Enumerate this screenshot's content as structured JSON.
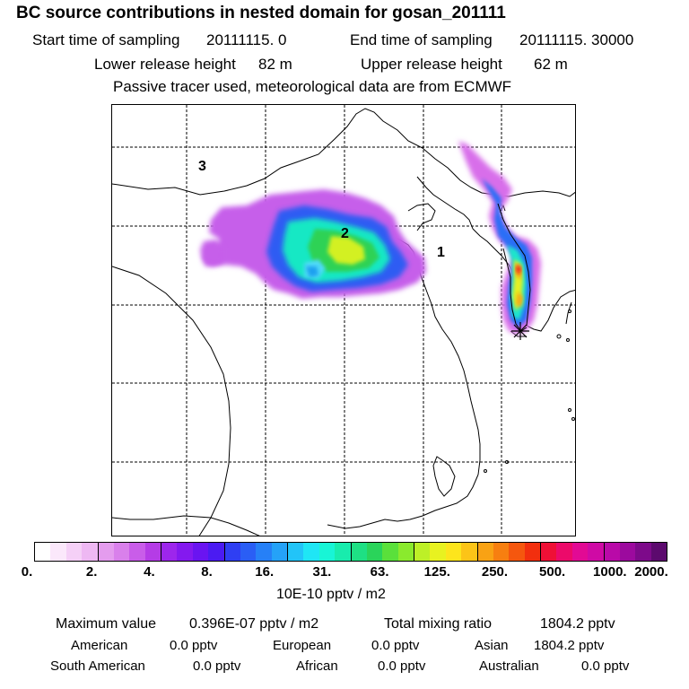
{
  "header": {
    "title": "BC  source contributions in nested domain for gosan_201111",
    "start_label": "Start time of sampling",
    "start_value": "20111115.     0",
    "end_label": "End time of sampling",
    "end_value": "20111115. 30000",
    "lower_label": "Lower release height",
    "lower_value": "82 m",
    "upper_label": "Upper release height",
    "upper_value": "62 m",
    "tracer_note": "Passive tracer used, meteorological data are from ECMWF"
  },
  "map": {
    "region_labels": [
      "1",
      "2",
      "3"
    ],
    "receptor_marker": "asterisk-marker"
  },
  "colorbar": {
    "unit_label": "10E-10 pptv / m2",
    "tick_labels": [
      "0.",
      "2.",
      "4.",
      "8.",
      "16.",
      "31.",
      "63.",
      "125.",
      "250.",
      "500.",
      "1000.",
      "2000."
    ],
    "colors": [
      "#ffffff",
      "#fbe8fb",
      "#f5d0f7",
      "#eeb8f3",
      "#e49cee",
      "#d980eb",
      "#c95de9",
      "#b53ce6",
      "#9d26ec",
      "#8419ef",
      "#6a14f1",
      "#4b1bf2",
      "#2f3ff3",
      "#2a5ef5",
      "#2680f7",
      "#25a2f8",
      "#22c4f8",
      "#1fe6f5",
      "#18f5d6",
      "#18ecad",
      "#1ee084",
      "#2ad45a",
      "#5ae03b",
      "#8aea2d",
      "#bdf027",
      "#e8f220",
      "#fde51c",
      "#fcc417",
      "#f9a214",
      "#f77f10",
      "#f5570e",
      "#f22f0e",
      "#ef1036",
      "#ec0a6a",
      "#e20a94",
      "#cf0aa5",
      "#b90aa8",
      "#9c0a9e",
      "#7d0a8a",
      "#5c0a6e"
    ]
  },
  "stats": {
    "max_label": "Maximum value",
    "max_value": "0.396E-07 pptv / m2",
    "total_label": "Total mixing ratio",
    "total_value": "1804.2 pptv",
    "regions": [
      {
        "name": "American",
        "value": "0.0 pptv"
      },
      {
        "name": "European",
        "value": "0.0 pptv"
      },
      {
        "name": "Asian",
        "value": "1804.2 pptv"
      },
      {
        "name": "South American",
        "value": "0.0 pptv"
      },
      {
        "name": "African",
        "value": "0.0 pptv"
      },
      {
        "name": "Australian",
        "value": "0.0 pptv"
      }
    ]
  }
}
